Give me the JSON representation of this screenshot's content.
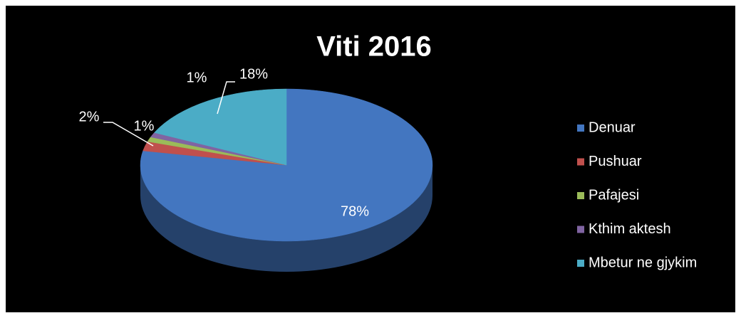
{
  "chart_data": {
    "type": "pie",
    "title": "Viti 2016",
    "categories": [
      "Denuar",
      "Pushuar",
      "Pafajesi",
      "Kthim aktesh",
      "Mbetur ne gjykim"
    ],
    "values": [
      78,
      2,
      1,
      1,
      18
    ],
    "value_labels": [
      "78%",
      "2%",
      "1%",
      "1%",
      "18%"
    ],
    "colors": [
      "#4376c0",
      "#c0504d",
      "#9bbb59",
      "#8064a2",
      "#4bacc6"
    ],
    "legend": "right"
  }
}
